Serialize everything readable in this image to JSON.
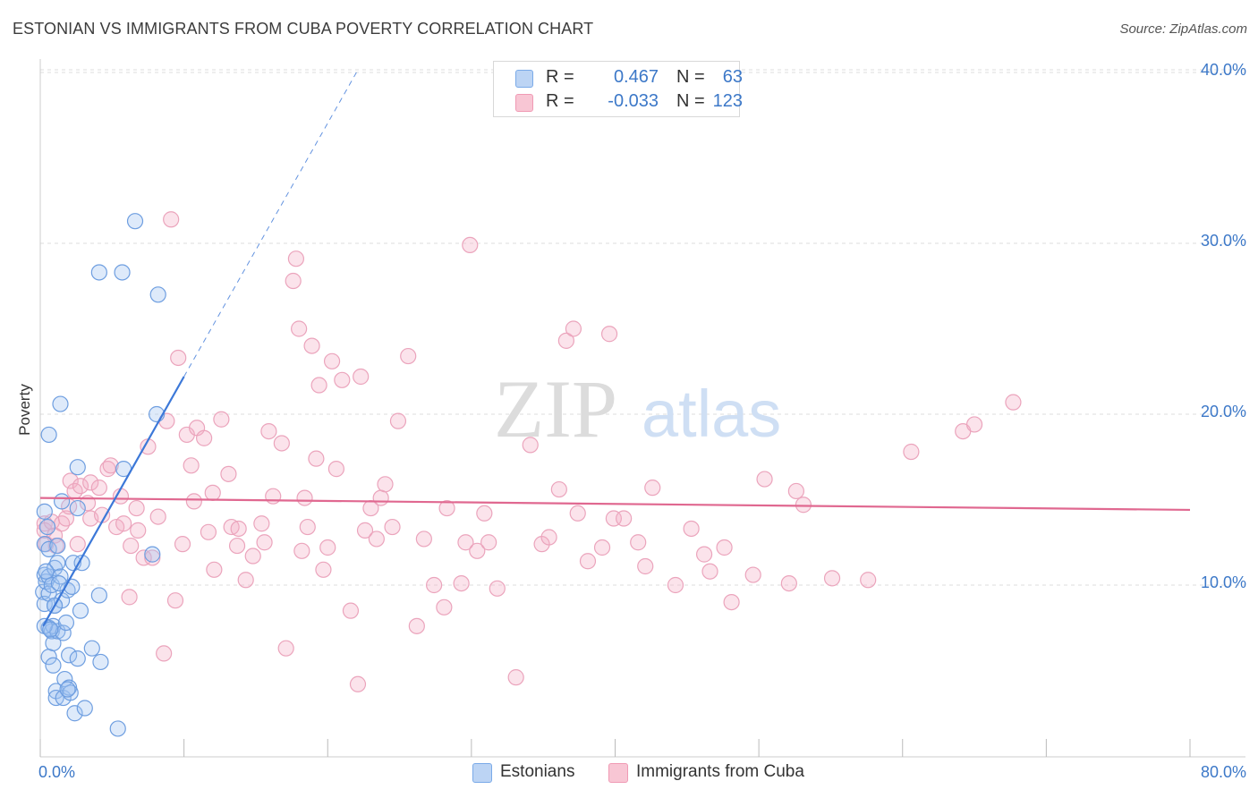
{
  "header": {
    "title": "ESTONIAN VS IMMIGRANTS FROM CUBA POVERTY CORRELATION CHART",
    "source": "Source: ZipAtlas.com"
  },
  "legend": {
    "r_label": "R =",
    "n_label": "N =",
    "series": [
      {
        "name": "Estonians",
        "r": "0.467",
        "n": "63",
        "color": "#7aaae8",
        "fill": "#bcd4f4"
      },
      {
        "name": "Immigrants from Cuba",
        "r": "-0.033",
        "n": "123",
        "color": "#f09ab4",
        "fill": "#f8c6d4"
      }
    ]
  },
  "watermark": {
    "zip": "ZIP",
    "atlas": "atlas"
  },
  "chart_data": {
    "type": "scatter",
    "title": "ESTONIAN VS IMMIGRANTS FROM CUBA POVERTY CORRELATION CHART",
    "xlabel": "",
    "ylabel": "Poverty",
    "xlim": [
      0,
      80
    ],
    "ylim": [
      0,
      42
    ],
    "x_tick_labels": [
      "0.0%",
      "80.0%"
    ],
    "y_ticks": [
      10,
      20,
      30,
      40
    ],
    "y_tick_labels": [
      "10.0%",
      "20.0%",
      "30.0%",
      "40.0%"
    ],
    "grid": true,
    "legend_position": "top-center",
    "series": [
      {
        "name": "Estonians",
        "color": "#3c78d8",
        "trend": {
          "x": [
            0.2,
            10.0
          ],
          "y": [
            7.6,
            22.2
          ],
          "dashed_to": [
            22.0,
            40.0
          ]
        },
        "points": [
          [
            0.3,
            14.3
          ],
          [
            0.3,
            12.4
          ],
          [
            0.3,
            10.6
          ],
          [
            0.2,
            9.6
          ],
          [
            0.3,
            8.9
          ],
          [
            0.4,
            10.2
          ],
          [
            0.6,
            18.8
          ],
          [
            0.6,
            12.1
          ],
          [
            0.6,
            10.5
          ],
          [
            0.6,
            9.5
          ],
          [
            0.6,
            7.5
          ],
          [
            0.6,
            5.8
          ],
          [
            0.8,
            10.0
          ],
          [
            0.8,
            7.3
          ],
          [
            0.9,
            7.6
          ],
          [
            0.9,
            6.6
          ],
          [
            0.9,
            5.3
          ],
          [
            1.0,
            11.0
          ],
          [
            1.0,
            8.8
          ],
          [
            1.1,
            3.8
          ],
          [
            1.1,
            3.4
          ],
          [
            1.2,
            12.3
          ],
          [
            1.2,
            11.3
          ],
          [
            1.2,
            7.3
          ],
          [
            1.4,
            10.5
          ],
          [
            1.4,
            20.6
          ],
          [
            1.5,
            14.9
          ],
          [
            1.5,
            9.1
          ],
          [
            1.6,
            7.2
          ],
          [
            1.6,
            3.4
          ],
          [
            1.7,
            4.5
          ],
          [
            1.8,
            7.8
          ],
          [
            1.9,
            9.7
          ],
          [
            2.0,
            4.0
          ],
          [
            2.0,
            5.9
          ],
          [
            2.1,
            3.7
          ],
          [
            2.2,
            9.9
          ],
          [
            2.3,
            11.3
          ],
          [
            2.4,
            2.5
          ],
          [
            2.6,
            16.9
          ],
          [
            2.6,
            5.7
          ],
          [
            2.6,
            14.5
          ],
          [
            2.8,
            8.5
          ],
          [
            2.9,
            11.3
          ],
          [
            3.1,
            2.8
          ],
          [
            3.6,
            6.3
          ],
          [
            4.1,
            9.4
          ],
          [
            4.2,
            5.5
          ],
          [
            4.1,
            28.3
          ],
          [
            5.4,
            1.6
          ],
          [
            5.7,
            28.3
          ],
          [
            5.8,
            16.8
          ],
          [
            6.6,
            31.3
          ],
          [
            7.8,
            11.8
          ],
          [
            8.1,
            20.0
          ],
          [
            8.2,
            27.0
          ],
          [
            0.3,
            7.6
          ],
          [
            0.5,
            13.4
          ],
          [
            1.0,
            8.8
          ],
          [
            0.4,
            10.8
          ],
          [
            1.3,
            10.1
          ],
          [
            0.7,
            7.4
          ],
          [
            1.9,
            3.9
          ]
        ]
      },
      {
        "name": "Immigrants from Cuba",
        "color": "#e06890",
        "trend": {
          "x": [
            0.0,
            80.0
          ],
          "y": [
            15.1,
            14.4
          ]
        },
        "points": [
          [
            0.3,
            13.6
          ],
          [
            0.4,
            12.4
          ],
          [
            0.3,
            13.2
          ],
          [
            0.8,
            13.7
          ],
          [
            1.0,
            12.9
          ],
          [
            1.1,
            12.3
          ],
          [
            1.5,
            13.6
          ],
          [
            1.8,
            13.9
          ],
          [
            2.0,
            14.6
          ],
          [
            2.1,
            16.1
          ],
          [
            2.4,
            15.5
          ],
          [
            2.6,
            12.4
          ],
          [
            2.8,
            15.8
          ],
          [
            3.3,
            14.8
          ],
          [
            3.5,
            13.9
          ],
          [
            3.5,
            16.0
          ],
          [
            4.1,
            15.7
          ],
          [
            4.3,
            14.1
          ],
          [
            4.7,
            16.8
          ],
          [
            4.9,
            17.0
          ],
          [
            5.3,
            13.4
          ],
          [
            5.6,
            15.2
          ],
          [
            5.8,
            13.6
          ],
          [
            6.2,
            9.3
          ],
          [
            6.3,
            12.3
          ],
          [
            6.7,
            14.5
          ],
          [
            6.8,
            13.2
          ],
          [
            7.2,
            11.6
          ],
          [
            7.5,
            18.1
          ],
          [
            7.8,
            11.6
          ],
          [
            8.2,
            14.0
          ],
          [
            8.6,
            6.0
          ],
          [
            8.8,
            19.6
          ],
          [
            9.1,
            31.4
          ],
          [
            9.4,
            9.1
          ],
          [
            9.6,
            23.3
          ],
          [
            9.9,
            12.4
          ],
          [
            10.2,
            18.8
          ],
          [
            10.5,
            17.0
          ],
          [
            10.7,
            14.9
          ],
          [
            10.9,
            19.2
          ],
          [
            11.4,
            18.6
          ],
          [
            11.7,
            13.1
          ],
          [
            12.0,
            15.4
          ],
          [
            12.1,
            10.9
          ],
          [
            12.6,
            19.7
          ],
          [
            13.1,
            16.5
          ],
          [
            13.3,
            13.4
          ],
          [
            13.7,
            12.3
          ],
          [
            13.8,
            13.3
          ],
          [
            14.3,
            10.3
          ],
          [
            14.8,
            11.7
          ],
          [
            15.4,
            13.6
          ],
          [
            15.6,
            12.5
          ],
          [
            15.9,
            19.0
          ],
          [
            16.2,
            15.2
          ],
          [
            16.8,
            18.3
          ],
          [
            17.1,
            6.3
          ],
          [
            17.6,
            27.8
          ],
          [
            17.8,
            29.1
          ],
          [
            18.0,
            25.0
          ],
          [
            18.2,
            12.0
          ],
          [
            18.4,
            15.1
          ],
          [
            18.6,
            13.4
          ],
          [
            18.9,
            24.0
          ],
          [
            19.2,
            17.4
          ],
          [
            19.4,
            21.7
          ],
          [
            19.7,
            10.9
          ],
          [
            20.0,
            12.2
          ],
          [
            20.3,
            23.1
          ],
          [
            20.6,
            16.8
          ],
          [
            21.0,
            22.0
          ],
          [
            21.6,
            8.5
          ],
          [
            22.1,
            4.2
          ],
          [
            22.3,
            22.2
          ],
          [
            22.6,
            13.2
          ],
          [
            23.0,
            14.5
          ],
          [
            23.4,
            12.7
          ],
          [
            23.7,
            15.1
          ],
          [
            24.0,
            15.9
          ],
          [
            24.5,
            13.4
          ],
          [
            24.9,
            19.6
          ],
          [
            25.6,
            23.4
          ],
          [
            26.2,
            7.6
          ],
          [
            26.7,
            12.7
          ],
          [
            27.4,
            10.0
          ],
          [
            28.1,
            8.7
          ],
          [
            28.3,
            14.5
          ],
          [
            29.3,
            10.1
          ],
          [
            29.6,
            12.5
          ],
          [
            30.4,
            12.0
          ],
          [
            30.9,
            14.2
          ],
          [
            31.2,
            12.5
          ],
          [
            31.8,
            9.8
          ],
          [
            33.1,
            4.6
          ],
          [
            34.1,
            18.2
          ],
          [
            34.9,
            12.4
          ],
          [
            35.4,
            12.8
          ],
          [
            36.1,
            15.6
          ],
          [
            36.6,
            24.3
          ],
          [
            37.1,
            25.0
          ],
          [
            37.4,
            14.2
          ],
          [
            38.1,
            11.4
          ],
          [
            39.1,
            12.2
          ],
          [
            39.6,
            24.7
          ],
          [
            39.9,
            13.9
          ],
          [
            40.6,
            13.9
          ],
          [
            41.6,
            12.5
          ],
          [
            42.1,
            11.1
          ],
          [
            42.6,
            15.7
          ],
          [
            44.2,
            10.0
          ],
          [
            45.3,
            13.3
          ],
          [
            46.2,
            11.8
          ],
          [
            46.6,
            10.8
          ],
          [
            47.6,
            12.2
          ],
          [
            48.1,
            9.0
          ],
          [
            49.6,
            10.6
          ],
          [
            50.4,
            16.2
          ],
          [
            52.1,
            10.1
          ],
          [
            52.6,
            15.5
          ],
          [
            53.1,
            14.7
          ],
          [
            55.1,
            10.4
          ],
          [
            57.6,
            10.3
          ]
        ],
        "extra_points": [
          [
            60.6,
            17.8
          ],
          [
            64.2,
            19.0
          ],
          [
            65.0,
            19.4
          ],
          [
            67.7,
            20.7
          ],
          [
            29.9,
            29.9
          ]
        ]
      }
    ]
  },
  "axes": {
    "y_title": "Poverty",
    "x_min_label": "0.0%",
    "x_max_label": "80.0%"
  }
}
